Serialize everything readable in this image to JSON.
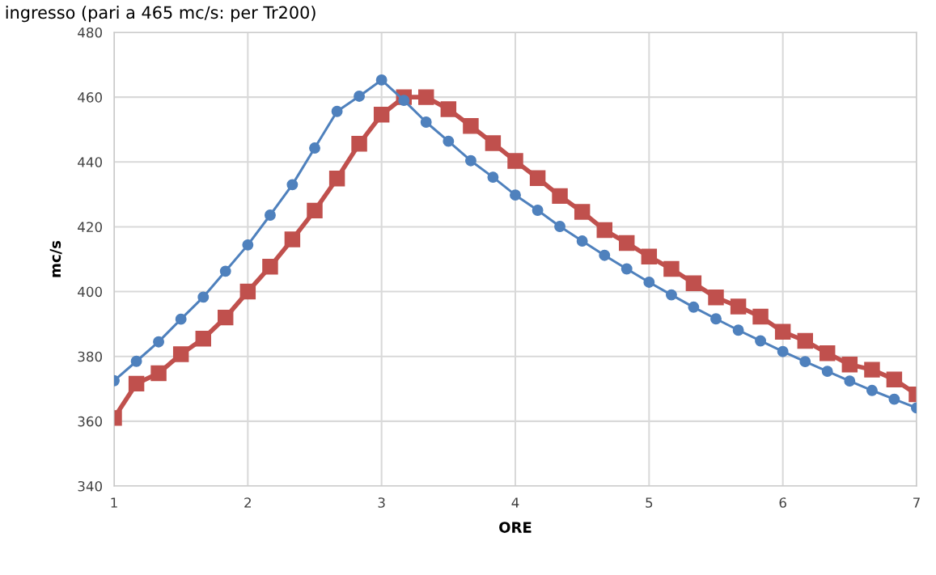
{
  "chart_data": {
    "type": "line",
    "title": "ingresso (pari a 465 mc/s: per Tr200)",
    "xlabel": "ORE",
    "ylabel": "mc/s",
    "x": [
      1,
      1.167,
      1.333,
      1.5,
      1.667,
      1.833,
      2,
      2.167,
      2.333,
      2.5,
      2.667,
      2.833,
      3,
      3.167,
      3.333,
      3.5,
      3.667,
      3.833,
      4,
      4.167,
      4.333,
      4.5,
      4.667,
      4.833,
      5,
      5.167,
      5.333,
      5.5,
      5.667,
      5.833,
      6,
      6.167,
      6.333,
      6.5,
      6.667,
      6.833,
      7
    ],
    "series": [
      {
        "color": "#4f81bd",
        "marker": "circle",
        "values": [
          372.5,
          378.5,
          384.5,
          391.5,
          398.3,
          406.3,
          414.4,
          423.6,
          433,
          444.3,
          455.6,
          460.3,
          465.3,
          459,
          452.3,
          446.4,
          440.4,
          435.3,
          429.8,
          425.1,
          420.1,
          415.6,
          411.2,
          407,
          402.9,
          399,
          395.2,
          391.6,
          388.1,
          384.8,
          381.5,
          378.4,
          375.4,
          372.4,
          369.5,
          366.8,
          364.1
        ]
      },
      {
        "color": "#c0504d",
        "marker": "square",
        "values": [
          361,
          371.6,
          374.8,
          380.7,
          385.5,
          392,
          400,
          407.7,
          416.1,
          425,
          434.9,
          445.6,
          454.6,
          460,
          460,
          456.3,
          451.1,
          445.8,
          440.3,
          435,
          429.5,
          424.6,
          419,
          415,
          410.8,
          407,
          402.6,
          398.2,
          395.4,
          392.3,
          387.6,
          384.8,
          381,
          377.5,
          375.9,
          372.9,
          368.3
        ]
      }
    ],
    "xlim": [
      1,
      7
    ],
    "xticks": [
      1,
      2,
      3,
      4,
      5,
      6,
      7
    ],
    "ylim": [
      340,
      480
    ],
    "yticks": [
      340,
      360,
      380,
      400,
      420,
      440,
      460,
      480
    ],
    "grid": true,
    "legend": false,
    "line_style": "solid"
  }
}
